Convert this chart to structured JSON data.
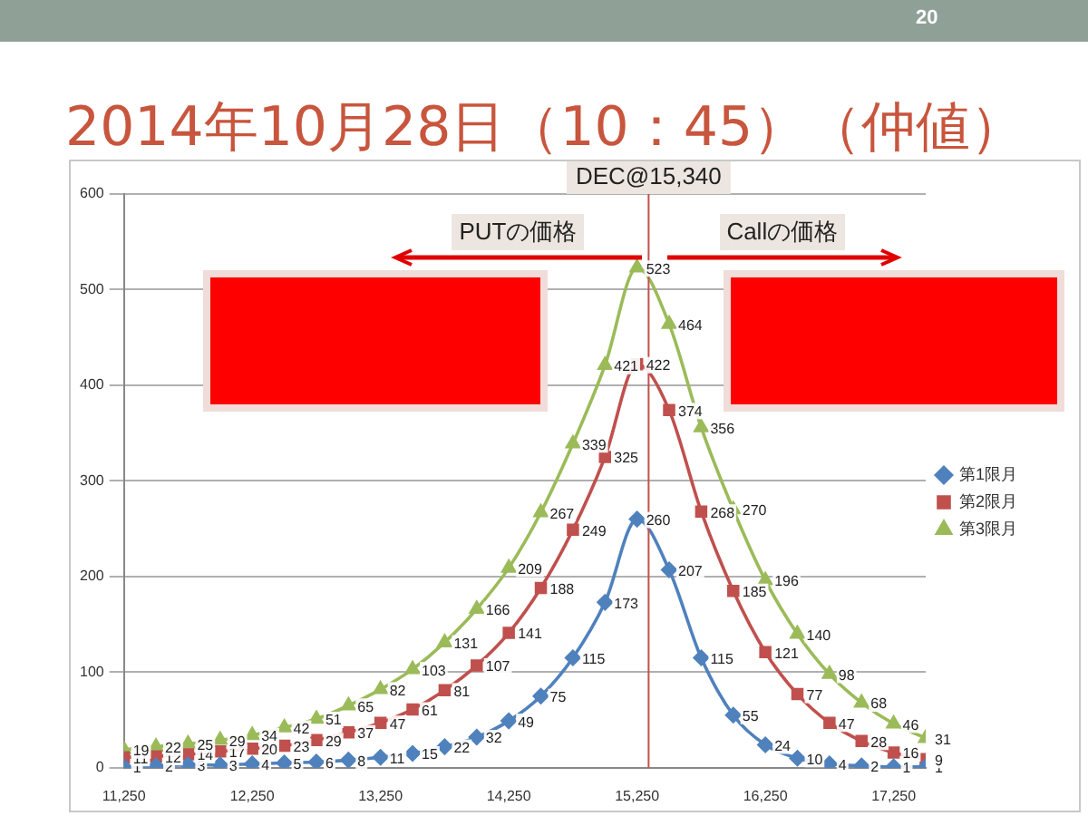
{
  "chart_data": {
    "type": "line",
    "title": "2014年10月28日（10：45）（仲値）",
    "annotations": [
      "20",
      "PUTの価格",
      "Callの価格"
    ],
    "xlim": [
      11250,
      17500
    ],
    "xticks": [
      {
        "value": 11250,
        "label": "11,250"
      },
      {
        "value": 12250,
        "label": "12,250"
      },
      {
        "value": 13250,
        "label": "13,250"
      },
      {
        "value": 14250,
        "label": "14,250"
      },
      {
        "value": 15250,
        "label": "15,250"
      },
      {
        "value": 16250,
        "label": "16,250"
      },
      {
        "value": 17250,
        "label": "17,250"
      }
    ],
    "ylim": [
      0,
      600
    ],
    "yticks": [
      0,
      100,
      200,
      300,
      400,
      500,
      600
    ],
    "x": [
      11250,
      11500,
      11750,
      12000,
      12250,
      12500,
      12750,
      13000,
      13250,
      13500,
      13750,
      14000,
      14250,
      14500,
      14750,
      15000,
      15250,
      15500,
      15750,
      16000,
      16250,
      16500,
      16750,
      17000,
      17250,
      17500
    ],
    "series": [
      {
        "name": "第1限月",
        "color": "#4f81bd",
        "marker": "diamond",
        "values": [
          1,
          2,
          3,
          3,
          4,
          5,
          6,
          8,
          11,
          15,
          22,
          32,
          49,
          75,
          115,
          173,
          260,
          207,
          115,
          55,
          24,
          10,
          4,
          2,
          1,
          1
        ]
      },
      {
        "name": "第2限月",
        "color": "#c0504d",
        "marker": "square",
        "values": [
          11,
          12,
          14,
          17,
          20,
          23,
          29,
          37,
          47,
          61,
          81,
          107,
          141,
          188,
          249,
          325,
          422,
          374,
          268,
          185,
          121,
          77,
          47,
          28,
          16,
          9
        ]
      },
      {
        "name": "第3限月",
        "color": "#9bbb59",
        "marker": "triangle",
        "values": [
          19,
          22,
          25,
          29,
          34,
          42,
          51,
          65,
          82,
          103,
          131,
          166,
          209,
          267,
          339,
          421,
          523,
          464,
          356,
          270,
          196,
          140,
          98,
          68,
          46,
          31
        ]
      }
    ],
    "ref_lines": [
      {
        "axis": "x",
        "value": 15340,
        "label": "DEC@15,340",
        "color": "#c0504d"
      }
    ],
    "grid": "y",
    "legend": "right",
    "data_labels": true
  }
}
